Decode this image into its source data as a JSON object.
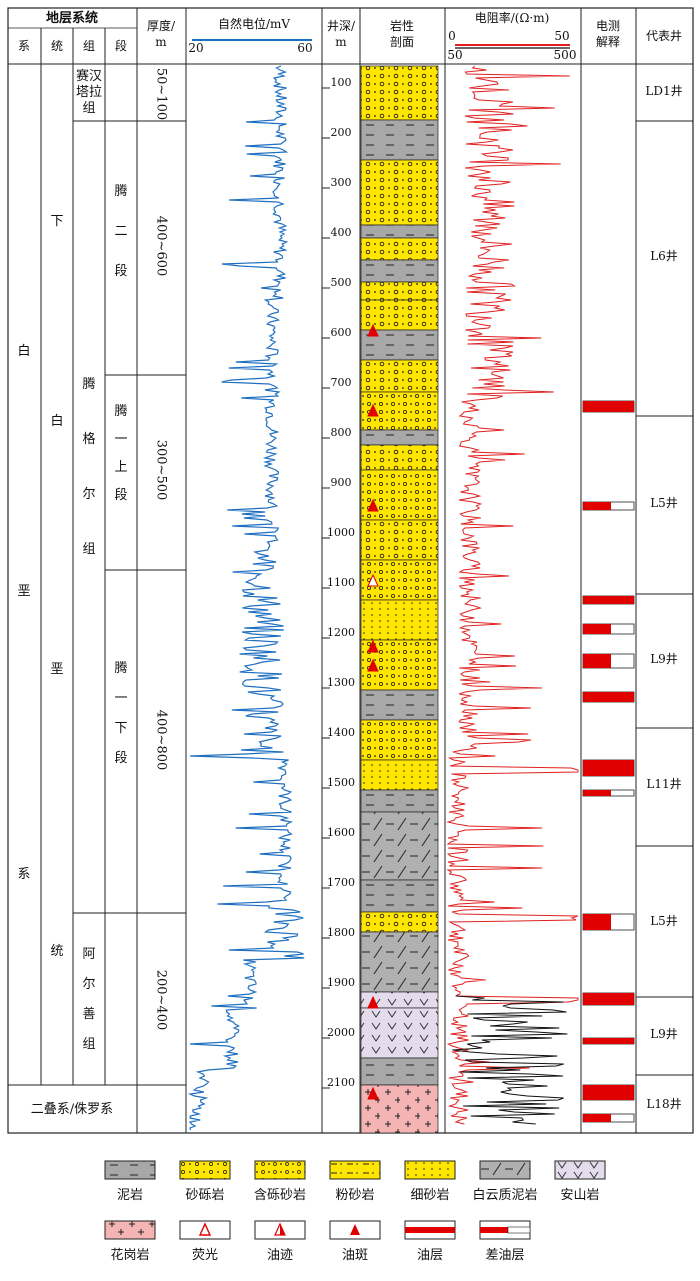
{
  "headers": {
    "stratigraphy": "地层系统",
    "system": "系",
    "series": "统",
    "group": "组",
    "member": "段",
    "thickness": "厚度/ m",
    "sp": "自然电位/mV",
    "sp_min": "20",
    "sp_max": "60",
    "depth": "井深/ m",
    "lithology": "岩性 剖面",
    "resistivity": "电阻率/(Ω·m)",
    "res_a_min": "0",
    "res_a_max": "50",
    "res_b_min": "50",
    "res_b_max": "500",
    "log_interp": "电测 解释",
    "rep_well": "代表井"
  },
  "strata": {
    "system_chars": [
      "白",
      "垩",
      "系"
    ],
    "series_chars": [
      "下",
      "白",
      "垩",
      "统"
    ],
    "groups": [
      {
        "name": "赛汉 塔拉 组"
      },
      {
        "name": "腾 格 尔 组"
      },
      {
        "name": "阿 尔 善 组"
      }
    ],
    "members": [
      {
        "name": "腾 二 段"
      },
      {
        "name": "腾 一 上 段"
      },
      {
        "name": "腾 一 下 段"
      }
    ],
    "thickness": [
      "50~100",
      "400~600",
      "300~500",
      "400~800",
      "200~400"
    ],
    "bottom_label": "二叠系/侏罗系"
  },
  "depth_ticks": [
    "100",
    "200",
    "300",
    "400",
    "500",
    "600",
    "700",
    "800",
    "900",
    "1000",
    "1100",
    "1200",
    "1300",
    "1400",
    "1500",
    "1600",
    "1700",
    "1800",
    "1900",
    "2000",
    "2100"
  ],
  "wells": [
    "LD1井",
    "L6井",
    "L5井",
    "L9井",
    "L11井",
    "L5井",
    "L9井",
    "L18井"
  ],
  "legend": [
    {
      "label": "泥岩",
      "icon": "mudstone"
    },
    {
      "label": "砂砾岩",
      "icon": "glutenite"
    },
    {
      "label": "含砾砂岩",
      "icon": "pebbly-sandstone"
    },
    {
      "label": "粉砂岩",
      "icon": "siltstone"
    },
    {
      "label": "细砂岩",
      "icon": "fine-sandstone"
    },
    {
      "label": "白云质泥岩",
      "icon": "dolomitic-mudstone"
    },
    {
      "label": "安山岩",
      "icon": "andesite"
    },
    {
      "label": "花岗岩",
      "icon": "granite"
    },
    {
      "label": "荧光",
      "icon": "fluorescence"
    },
    {
      "label": "油迹",
      "icon": "oil-trace"
    },
    {
      "label": "油斑",
      "icon": "oil-spot"
    },
    {
      "label": "油层",
      "icon": "oil-layer"
    },
    {
      "label": "差油层",
      "icon": "poor-oil-layer"
    }
  ],
  "colors": {
    "sp_curve": "#1f6fc0",
    "res_curve_a": "#e02020",
    "res_curve_b": "#111111",
    "sandstone": "#ffe600",
    "mudstone": "#a8a8a8",
    "granite": "#f4b4b4",
    "andesite": "#e4dcec",
    "oil": "#e00000"
  }
}
